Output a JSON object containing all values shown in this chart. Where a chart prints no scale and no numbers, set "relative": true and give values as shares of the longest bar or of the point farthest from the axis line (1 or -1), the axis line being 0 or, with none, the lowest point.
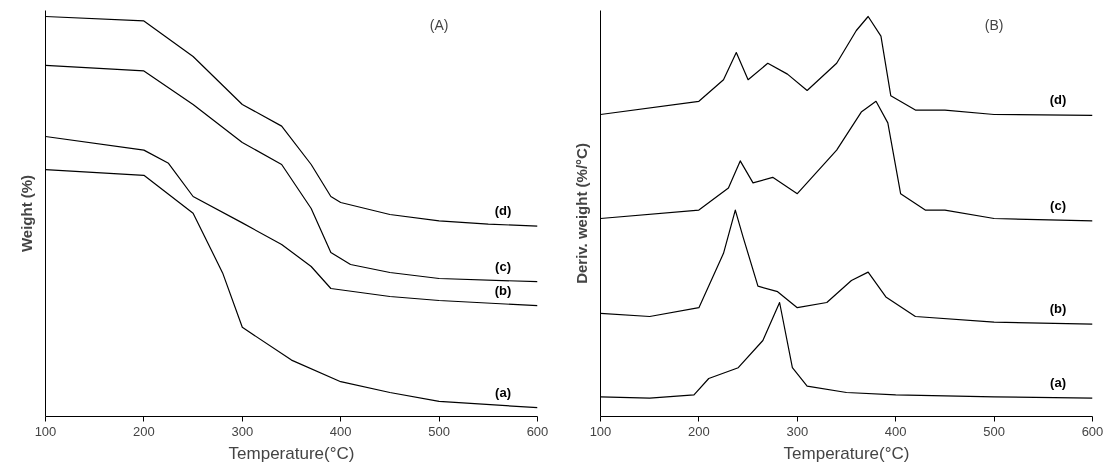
{
  "chart_data": [
    {
      "type": "line",
      "title": "(A)",
      "xlabel": "Temperature(°C)",
      "ylabel": "Weight (%)",
      "relative": true,
      "xlim": [
        100,
        600
      ],
      "xticks": [
        100,
        200,
        300,
        400,
        500,
        600
      ],
      "tick_labels": "x",
      "grid": false,
      "legend": false,
      "marker": "none",
      "line_style": "solid",
      "series": [
        {
          "name": "(d)",
          "color": "#000000",
          "x": [
            100,
            200,
            250,
            300,
            340,
            370,
            390,
            400,
            450,
            500,
            550,
            600
          ],
          "values": [
            1.0,
            0.989,
            0.9,
            0.78,
            0.726,
            0.63,
            0.55,
            0.535,
            0.505,
            0.489,
            0.481,
            0.476
          ]
        },
        {
          "name": "(c)",
          "color": "#000000",
          "x": [
            100,
            200,
            250,
            300,
            340,
            370,
            390,
            410,
            450,
            500,
            600
          ],
          "values": [
            0.878,
            0.864,
            0.78,
            0.685,
            0.63,
            0.52,
            0.41,
            0.38,
            0.36,
            0.345,
            0.337
          ]
        },
        {
          "name": "(b)",
          "color": "#000000",
          "x": [
            100,
            200,
            225,
            250,
            300,
            340,
            370,
            390,
            450,
            500,
            600
          ],
          "values": [
            0.7,
            0.666,
            0.633,
            0.55,
            0.484,
            0.43,
            0.375,
            0.32,
            0.3,
            0.29,
            0.277
          ]
        },
        {
          "name": "(a)",
          "color": "#000000",
          "x": [
            100,
            200,
            250,
            280,
            300,
            350,
            400,
            450,
            500,
            600
          ],
          "values": [
            0.617,
            0.603,
            0.508,
            0.359,
            0.223,
            0.141,
            0.087,
            0.06,
            0.038,
            0.022
          ]
        }
      ]
    },
    {
      "type": "line",
      "title": "(B)",
      "xlabel": "Temperature(°C)",
      "ylabel": "Deriv. weight (%/°C)",
      "relative": true,
      "xlim": [
        100,
        600
      ],
      "xticks": [
        100,
        200,
        300,
        400,
        500,
        600
      ],
      "tick_labels": "x",
      "grid": false,
      "legend": false,
      "marker": "none",
      "line_style": "solid",
      "series": [
        {
          "name": "(d)",
          "color": "#000000",
          "x": [
            100,
            200,
            225,
            238,
            250,
            270,
            290,
            310,
            340,
            360,
            372,
            385,
            395,
            420,
            450,
            500,
            600
          ],
          "values": [
            0.755,
            0.788,
            0.842,
            0.91,
            0.842,
            0.883,
            0.856,
            0.815,
            0.883,
            0.965,
            1.0,
            0.951,
            0.802,
            0.766,
            0.766,
            0.755,
            0.753
          ]
        },
        {
          "name": "(c)",
          "color": "#000000",
          "x": [
            100,
            200,
            230,
            242,
            255,
            275,
            300,
            340,
            365,
            380,
            392,
            405,
            430,
            450,
            500,
            600
          ],
          "values": [
            0.495,
            0.516,
            0.571,
            0.639,
            0.584,
            0.598,
            0.557,
            0.666,
            0.761,
            0.788,
            0.734,
            0.557,
            0.516,
            0.516,
            0.495,
            0.489
          ]
        },
        {
          "name": "(b)",
          "color": "#000000",
          "x": [
            100,
            150,
            200,
            225,
            237,
            245,
            260,
            280,
            300,
            330,
            355,
            372,
            390,
            420,
            500,
            600
          ],
          "values": [
            0.258,
            0.25,
            0.272,
            0.408,
            0.516,
            0.448,
            0.326,
            0.312,
            0.272,
            0.285,
            0.34,
            0.361,
            0.299,
            0.25,
            0.236,
            0.231
          ]
        },
        {
          "name": "(a)",
          "color": "#000000",
          "x": [
            100,
            150,
            195,
            210,
            240,
            265,
            282,
            295,
            310,
            350,
            400,
            500,
            600
          ],
          "values": [
            0.049,
            0.046,
            0.054,
            0.095,
            0.122,
            0.19,
            0.285,
            0.122,
            0.076,
            0.06,
            0.054,
            0.049,
            0.046
          ]
        }
      ]
    }
  ]
}
